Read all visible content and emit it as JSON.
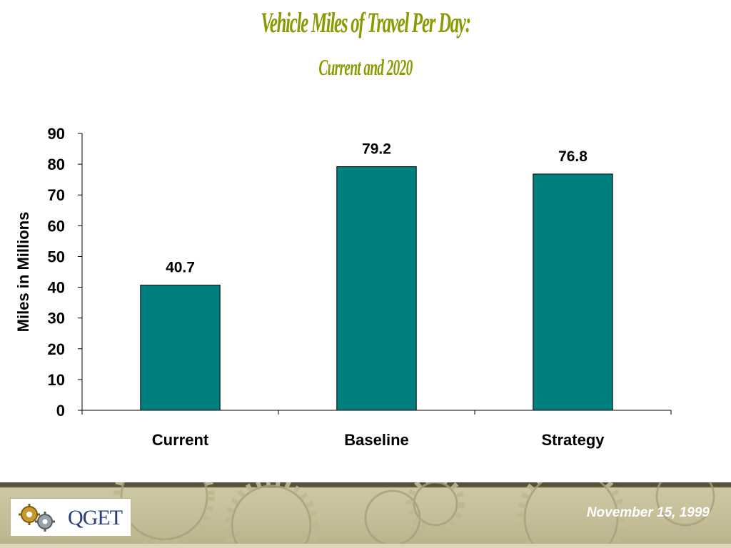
{
  "chart_data": {
    "type": "bar",
    "title": "Vehicle Miles of Travel Per Day:",
    "subtitle": "Current and 2020",
    "categories": [
      "Current",
      "Baseline",
      "Strategy"
    ],
    "values": [
      40.7,
      79.2,
      76.8
    ],
    "value_labels": [
      "40.7",
      "79.2",
      "76.8"
    ],
    "ylabel": "Miles in Millions",
    "ylim": [
      0,
      90
    ],
    "yticks": [
      0,
      10,
      20,
      30,
      40,
      50,
      60,
      70,
      80,
      90
    ],
    "bar_color": "#007f7f",
    "grid": false,
    "legend": "none"
  },
  "footer": {
    "logo_text": "QGET",
    "date": "November 15, 1999"
  },
  "colors": {
    "title": "#8a9a00",
    "footer_band": "#c4bd97"
  },
  "icons": [
    "gears-icon"
  ]
}
